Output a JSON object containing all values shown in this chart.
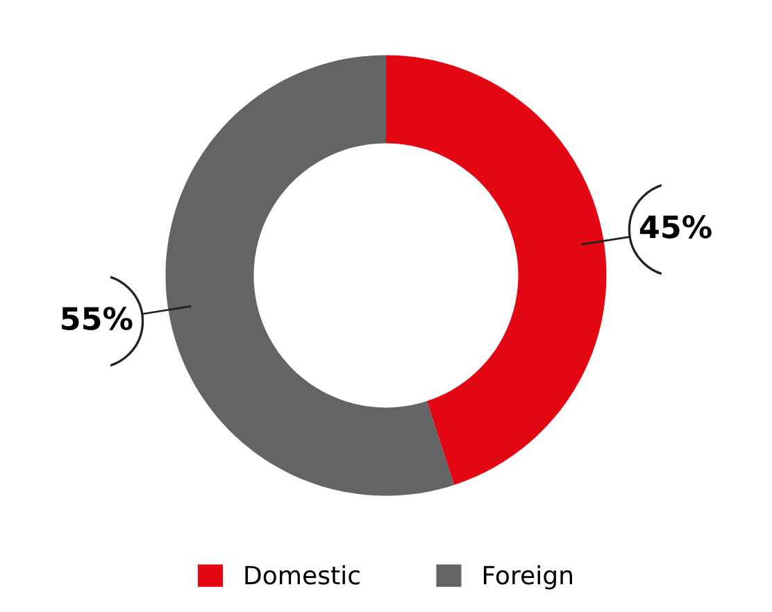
{
  "chart_data": {
    "type": "donut",
    "categories": [
      "Domestic",
      "Foreign"
    ],
    "values": [
      45,
      55
    ],
    "colors": [
      "#e30613",
      "#636466"
    ],
    "value_labels": [
      "45%",
      "55%"
    ],
    "legend": "bottom"
  }
}
